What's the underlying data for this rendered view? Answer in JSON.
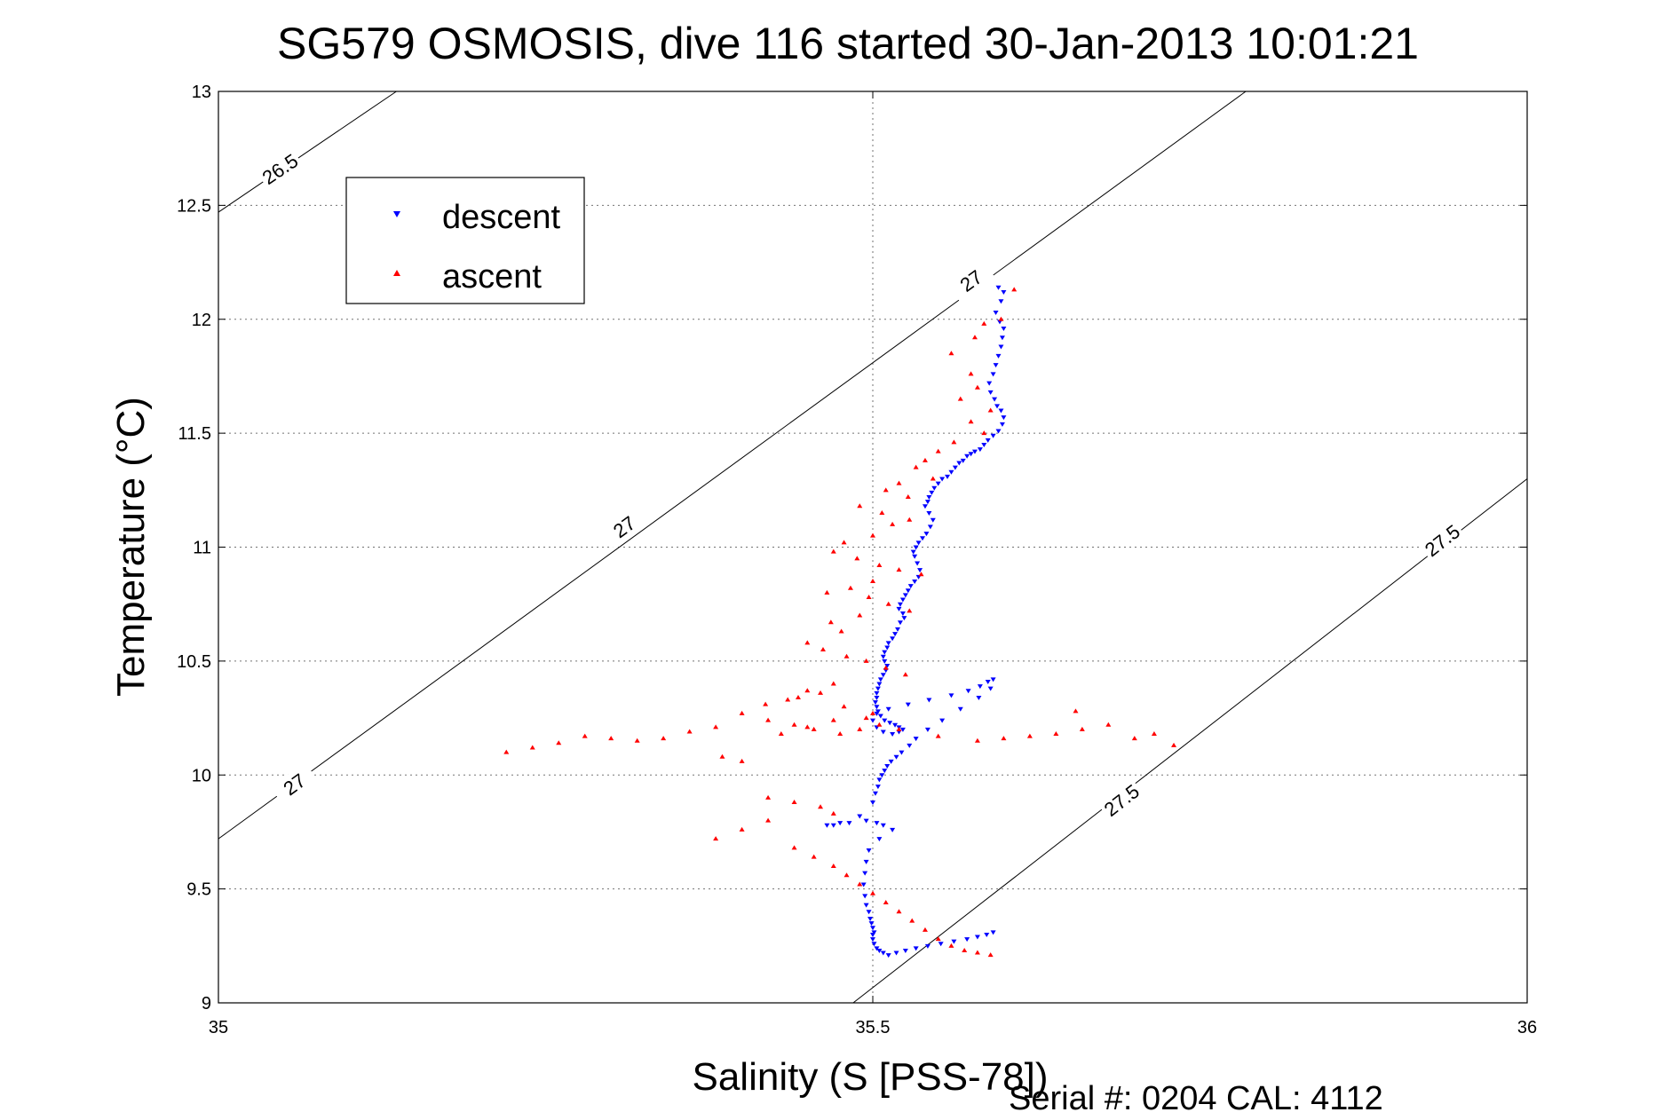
{
  "chart_data": {
    "type": "scatter",
    "title": "SG579 OSMOSIS, dive 116 started 30-Jan-2013 10:01:21",
    "xlabel": "Salinity (S [PSS-78])",
    "ylabel": "Temperature (°C)",
    "xlim": [
      35,
      36
    ],
    "ylim": [
      9,
      13
    ],
    "xticks": [
      35,
      35.5,
      36
    ],
    "xtick_labels": [
      "35",
      "35.5",
      "36"
    ],
    "yticks": [
      9,
      9.5,
      10,
      10.5,
      11,
      11.5,
      12,
      12.5,
      13
    ],
    "ytick_labels": [
      "9",
      "9.5",
      "10",
      "10.5",
      "11",
      "11.5",
      "12",
      "12.5",
      "13"
    ],
    "grid": true,
    "legend_position": "top-left",
    "footer": "Serial #: 0204  CAL: 4112",
    "isopycnals": [
      {
        "label": "26.5",
        "points": [
          [
            35.0,
            12.47
          ],
          [
            35.136,
            13.0
          ]
        ],
        "label_at": [
          35.047,
          12.66
        ]
      },
      {
        "label": "27",
        "points": [
          [
            35.0,
            9.72
          ],
          [
            35.785,
            13.0
          ]
        ],
        "label_at": [
          35.058,
          9.96
        ],
        "label_at2": [
          35.31,
          11.09
        ],
        "label_at3": [
          35.575,
          12.17
        ]
      },
      {
        "label": "27.5",
        "points": [
          [
            35.485,
            9.0
          ],
          [
            36.0,
            11.3
          ]
        ],
        "label_at": [
          35.69,
          9.89
        ],
        "label_at2": [
          35.935,
          11.03
        ]
      }
    ],
    "series": [
      {
        "name": "descent",
        "color": "#0000ff",
        "marker": "triangle-down",
        "x": [
          35.596,
          35.6,
          35.598,
          35.594,
          35.597,
          35.6,
          35.599,
          35.598,
          35.596,
          35.594,
          35.592,
          35.589,
          35.59,
          35.593,
          35.595,
          35.598,
          35.6,
          35.599,
          35.596,
          35.592,
          35.588,
          35.585,
          35.582,
          35.578,
          35.575,
          35.572,
          35.569,
          35.566,
          35.563,
          35.56,
          35.557,
          35.553,
          35.55,
          35.547,
          35.545,
          35.543,
          35.542,
          35.54,
          35.543,
          35.546,
          35.544,
          35.541,
          35.538,
          35.535,
          35.533,
          35.531,
          35.532,
          35.534,
          35.536,
          35.535,
          35.532,
          35.529,
          35.527,
          35.525,
          35.523,
          35.521,
          35.52,
          35.523,
          35.524,
          35.521,
          35.519,
          35.517,
          35.515,
          35.512,
          35.511,
          35.509,
          35.508,
          35.509,
          35.511,
          35.51,
          35.508,
          35.506,
          35.505,
          35.504,
          35.503,
          35.503,
          35.502,
          35.503,
          35.504,
          35.506,
          35.509,
          35.513,
          35.517,
          35.52,
          35.523,
          35.52,
          35.515,
          35.508,
          35.503,
          35.5,
          35.503,
          35.512,
          35.527,
          35.543,
          35.56,
          35.573,
          35.582,
          35.588,
          35.592,
          35.59,
          35.581,
          35.567,
          35.553,
          35.542,
          35.533,
          35.528,
          35.522,
          35.518,
          35.514,
          35.511,
          35.509,
          35.507,
          35.505,
          35.504,
          35.502,
          35.5,
          35.49,
          35.475,
          35.465,
          35.47,
          35.482,
          35.495,
          35.503,
          35.508,
          35.515,
          35.505,
          35.497,
          35.495,
          35.494,
          35.493,
          35.494,
          35.495,
          35.497,
          35.498,
          35.499,
          35.5,
          35.501,
          35.5,
          35.5,
          35.501,
          35.503,
          35.505,
          35.508,
          35.512,
          35.518,
          35.525,
          35.533,
          35.542,
          35.552,
          35.562,
          35.572,
          35.58,
          35.587,
          35.592
        ],
        "y": [
          12.14,
          12.12,
          12.08,
          12.03,
          11.99,
          11.96,
          11.92,
          11.88,
          11.84,
          11.8,
          11.76,
          11.72,
          11.68,
          11.65,
          11.62,
          11.6,
          11.57,
          11.54,
          11.51,
          11.49,
          11.47,
          11.45,
          11.43,
          11.42,
          11.41,
          11.4,
          11.38,
          11.37,
          11.35,
          11.33,
          11.31,
          11.3,
          11.28,
          11.26,
          11.24,
          11.22,
          11.2,
          11.18,
          11.15,
          11.12,
          11.09,
          11.06,
          11.04,
          11.02,
          11.0,
          10.98,
          10.96,
          10.93,
          10.9,
          10.87,
          10.85,
          10.83,
          10.81,
          10.79,
          10.77,
          10.75,
          10.73,
          10.71,
          10.69,
          10.67,
          10.64,
          10.62,
          10.6,
          10.58,
          10.56,
          10.54,
          10.52,
          10.5,
          10.48,
          10.46,
          10.44,
          10.42,
          10.4,
          10.38,
          10.36,
          10.34,
          10.32,
          10.3,
          10.28,
          10.26,
          10.24,
          10.23,
          10.22,
          10.21,
          10.2,
          10.19,
          10.18,
          10.19,
          10.21,
          10.24,
          10.27,
          10.29,
          10.31,
          10.33,
          10.35,
          10.37,
          10.39,
          10.41,
          10.42,
          10.38,
          10.34,
          10.29,
          10.24,
          10.2,
          10.16,
          10.13,
          10.1,
          10.08,
          10.06,
          10.04,
          10.02,
          10.0,
          9.98,
          9.95,
          9.92,
          9.88,
          9.82,
          9.79,
          9.78,
          9.78,
          9.79,
          9.8,
          9.79,
          9.78,
          9.76,
          9.72,
          9.67,
          9.62,
          9.57,
          9.52,
          9.47,
          9.43,
          9.4,
          9.37,
          9.35,
          9.33,
          9.31,
          9.3,
          9.28,
          9.26,
          9.24,
          9.23,
          9.22,
          9.21,
          9.22,
          9.23,
          9.24,
          9.25,
          9.26,
          9.27,
          9.28,
          9.29,
          9.3,
          9.31
        ]
      },
      {
        "name": "ascent",
        "color": "#ff0000",
        "marker": "triangle-up",
        "x": [
          35.608,
          35.598,
          35.585,
          35.578,
          35.56,
          35.575,
          35.58,
          35.567,
          35.59,
          35.575,
          35.585,
          35.562,
          35.55,
          35.54,
          35.533,
          35.546,
          35.52,
          35.51,
          35.527,
          35.49,
          35.507,
          35.528,
          35.515,
          35.5,
          35.478,
          35.47,
          35.488,
          35.505,
          35.52,
          35.537,
          35.5,
          35.483,
          35.465,
          35.497,
          35.512,
          35.528,
          35.49,
          35.468,
          35.476,
          35.45,
          35.462,
          35.48,
          35.495,
          35.51,
          35.525,
          35.47,
          35.45,
          35.435,
          35.418,
          35.443,
          35.46,
          35.478,
          35.495,
          35.505,
          35.49,
          35.475,
          35.455,
          35.44,
          35.42,
          35.4,
          35.38,
          35.36,
          35.34,
          35.32,
          35.3,
          35.28,
          35.26,
          35.24,
          35.22,
          35.43,
          35.45,
          35.47,
          35.5,
          35.52,
          35.55,
          35.58,
          35.6,
          35.62,
          35.64,
          35.66,
          35.68,
          35.715,
          35.73,
          35.7,
          35.655,
          35.385,
          35.4,
          35.42,
          35.44,
          35.46,
          35.47,
          35.42,
          35.4,
          35.38,
          35.44,
          35.455,
          35.47,
          35.48,
          35.49,
          35.5,
          35.51,
          35.52,
          35.53,
          35.54,
          35.55,
          35.56,
          35.57,
          35.58,
          35.59
        ],
        "y": [
          12.13,
          12.0,
          11.98,
          11.92,
          11.85,
          11.76,
          11.7,
          11.65,
          11.6,
          11.55,
          11.5,
          11.46,
          11.42,
          11.38,
          11.35,
          11.3,
          11.28,
          11.25,
          11.22,
          11.18,
          11.15,
          11.12,
          11.1,
          11.05,
          11.02,
          10.98,
          10.95,
          10.92,
          10.9,
          10.88,
          10.85,
          10.82,
          10.8,
          10.78,
          10.75,
          10.72,
          10.7,
          10.67,
          10.63,
          10.58,
          10.55,
          10.52,
          10.5,
          10.47,
          10.44,
          10.4,
          10.37,
          10.33,
          10.31,
          10.34,
          10.36,
          10.3,
          10.25,
          10.22,
          10.2,
          10.18,
          10.2,
          10.22,
          10.24,
          10.27,
          10.21,
          10.19,
          10.16,
          10.15,
          10.16,
          10.17,
          10.14,
          10.12,
          10.1,
          10.18,
          10.21,
          10.24,
          10.27,
          10.2,
          10.17,
          10.15,
          10.16,
          10.17,
          10.18,
          10.2,
          10.22,
          10.18,
          10.13,
          10.16,
          10.28,
          10.08,
          10.06,
          9.9,
          9.88,
          9.86,
          9.83,
          9.8,
          9.76,
          9.72,
          9.68,
          9.64,
          9.6,
          9.56,
          9.52,
          9.48,
          9.44,
          9.4,
          9.36,
          9.32,
          9.28,
          9.25,
          9.23,
          9.22,
          9.21
        ]
      }
    ]
  }
}
